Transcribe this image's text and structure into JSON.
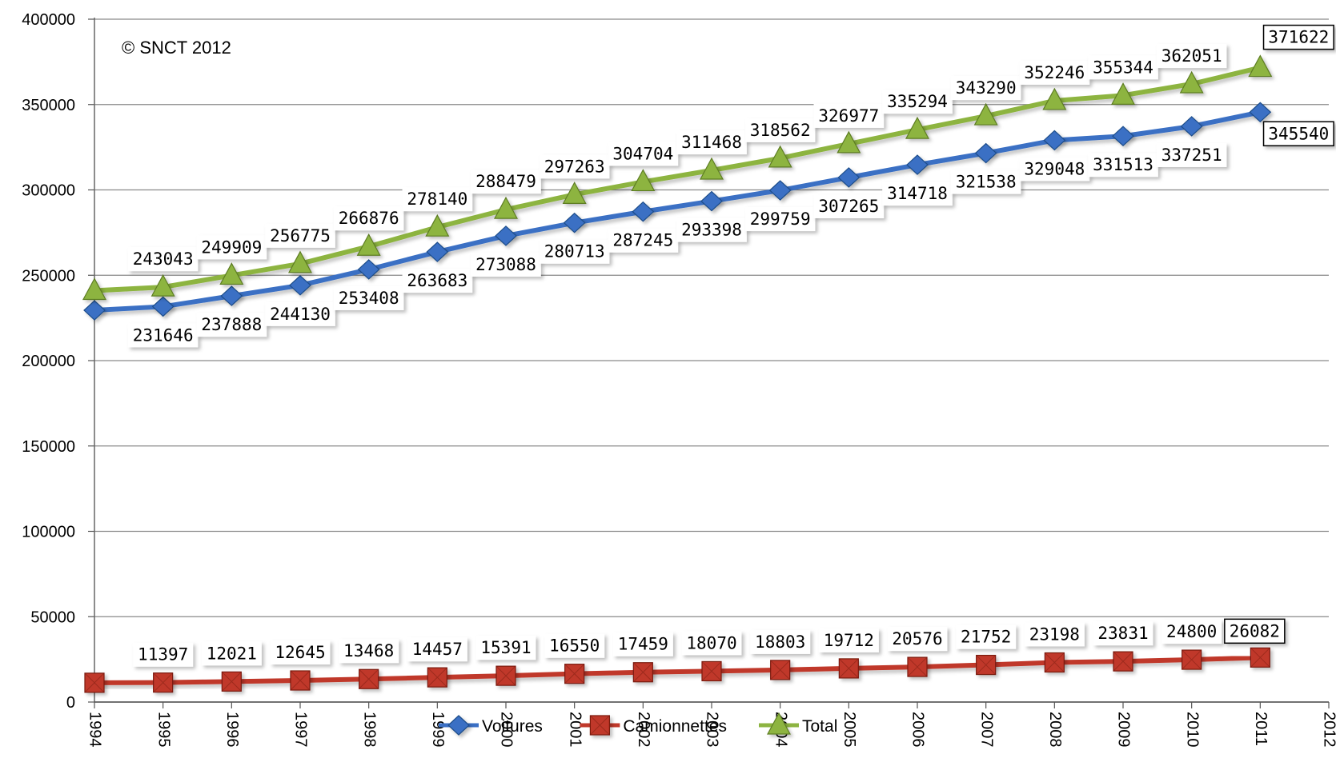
{
  "chart_data": {
    "type": "line",
    "annotation": "© SNCT 2012",
    "x": [
      1994,
      1995,
      1996,
      1997,
      1998,
      1999,
      2000,
      2001,
      2002,
      2003,
      2004,
      2005,
      2006,
      2007,
      2008,
      2009,
      2010,
      2011
    ],
    "x_ticks": [
      "1994",
      "1995",
      "1996",
      "1997",
      "1998",
      "1999",
      "2000",
      "2001",
      "2002",
      "2003",
      "2004",
      "2005",
      "2006",
      "2007",
      "2008",
      "2009",
      "2010",
      "2011",
      "2012"
    ],
    "xlim": [
      1994,
      2012
    ],
    "ylim": [
      0,
      400000
    ],
    "y_ticks": [
      "0",
      "50000",
      "100000",
      "150000",
      "200000",
      "250000",
      "300000",
      "350000",
      "400000"
    ],
    "grid": "horizontal",
    "legend_position": "bottom",
    "series": [
      {
        "name": "Voitures",
        "color": "#3a6fc4",
        "marker": "diamond",
        "values": [
          229500,
          231646,
          237888,
          244130,
          253408,
          263683,
          273088,
          280713,
          287245,
          293398,
          299759,
          307265,
          314718,
          321538,
          329048,
          331513,
          337251,
          345540
        ],
        "labels": [
          "",
          "231646",
          "237888",
          "244130",
          "253408",
          "263683",
          "273088",
          "280713",
          "287245",
          "293398",
          "299759",
          "307265",
          "314718",
          "321538",
          "329048",
          "331513",
          "337251",
          "345540"
        ]
      },
      {
        "name": "Camionnettes",
        "color": "#c0392b",
        "marker": "square",
        "values": [
          11300,
          11397,
          12021,
          12645,
          13468,
          14457,
          15391,
          16550,
          17459,
          18070,
          18803,
          19712,
          20576,
          21752,
          23198,
          23831,
          24800,
          26082
        ],
        "labels": [
          "",
          "11397",
          "12021",
          "12645",
          "13468",
          "14457",
          "15391",
          "16550",
          "17459",
          "18070",
          "18803",
          "19712",
          "20576",
          "21752",
          "23198",
          "23831",
          "24800",
          "26082"
        ]
      },
      {
        "name": "Total",
        "color": "#8db441",
        "marker": "triangle",
        "values": [
          241000,
          243043,
          249909,
          256775,
          266876,
          278140,
          288479,
          297263,
          304704,
          311468,
          318562,
          326977,
          335294,
          343290,
          352246,
          355344,
          362051,
          371622
        ],
        "labels": [
          "",
          "243043",
          "249909",
          "256775",
          "266876",
          "278140",
          "288479",
          "297263",
          "304704",
          "311468",
          "318562",
          "326977",
          "335294",
          "343290",
          "352246",
          "355344",
          "362051",
          "371622"
        ]
      }
    ]
  }
}
